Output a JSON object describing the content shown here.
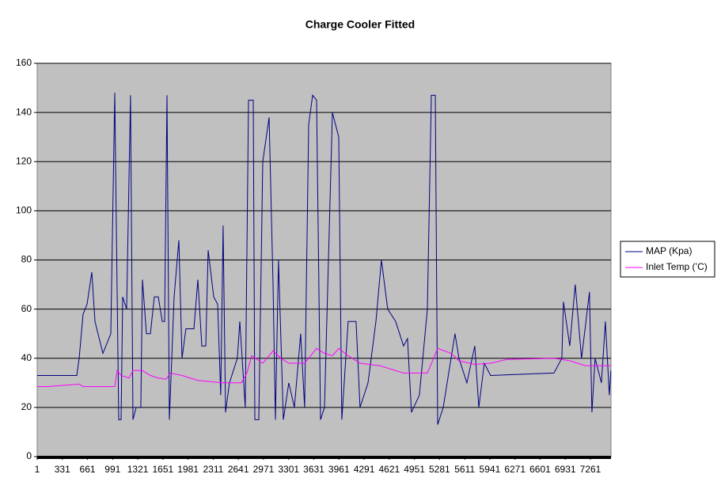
{
  "chart_data": {
    "type": "line",
    "title": "Charge Cooler Fitted",
    "xlim": [
      1,
      7531
    ],
    "xticks": [
      1,
      331,
      661,
      991,
      1321,
      1651,
      1981,
      2311,
      2641,
      2971,
      3301,
      3631,
      3961,
      4291,
      4621,
      4951,
      5281,
      5611,
      5941,
      6271,
      6601,
      6931,
      7261
    ],
    "ylim": [
      0,
      160
    ],
    "yticks": [
      0,
      20,
      40,
      60,
      80,
      100,
      120,
      140,
      160
    ],
    "grid": true,
    "legend": "right",
    "series": [
      {
        "name": "MAP (Kpa)",
        "color": "#000080",
        "x": [
          1,
          520,
          551,
          603,
          655,
          718,
          759,
          863,
          967,
          1019,
          1029,
          1071,
          1102,
          1123,
          1175,
          1226,
          1258,
          1299,
          1361,
          1382,
          1434,
          1486,
          1538,
          1590,
          1642,
          1673,
          1704,
          1735,
          1798,
          1860,
          1902,
          1953,
          2057,
          2109,
          2161,
          2213,
          2244,
          2317,
          2369,
          2410,
          2441,
          2473,
          2524,
          2628,
          2660,
          2732,
          2774,
          2836,
          2857,
          2909,
          2961,
          3044,
          3096,
          3127,
          3168,
          3231,
          3303,
          3376,
          3459,
          3511,
          3563,
          3615,
          3667,
          3719,
          3771,
          3875,
          3958,
          3999,
          4082,
          4186,
          4238,
          4342,
          4446,
          4518,
          4601,
          4705,
          4809,
          4861,
          4913,
          5017,
          5121,
          5173,
          5225,
          5256,
          5329,
          5432,
          5484,
          5536,
          5640,
          5744,
          5796,
          5868,
          5951,
          6782,
          6886,
          6907,
          6990,
          7062,
          7145,
          7249,
          7281,
          7322,
          7405,
          7457,
          7509,
          7530
        ],
        "values": [
          33,
          33,
          40,
          58,
          62,
          75,
          55,
          42,
          50,
          148,
          120,
          15,
          15,
          65,
          60,
          147,
          15,
          20,
          20,
          72,
          50,
          50,
          65,
          65,
          55,
          55,
          147,
          15,
          65,
          88,
          40,
          52,
          52,
          72,
          45,
          45,
          84,
          65,
          62,
          25,
          94,
          18,
          30,
          40,
          55,
          20,
          145,
          145,
          15,
          15,
          120,
          138,
          70,
          15,
          80,
          15,
          30,
          20,
          50,
          20,
          135,
          147,
          145,
          15,
          20,
          140,
          130,
          15,
          55,
          55,
          20,
          30,
          55,
          80,
          60,
          55,
          45,
          48,
          18,
          25,
          60,
          147,
          147,
          13,
          20,
          40,
          50,
          40,
          30,
          45,
          20,
          38,
          33,
          34,
          40,
          63,
          45,
          70,
          40,
          67,
          18,
          40,
          30,
          55,
          25,
          35
        ]
      },
      {
        "name": "Inlet Temp (’C)",
        "color": "#ff00ff",
        "x": [
          1,
          136,
          551,
          603,
          1019,
          1050,
          1102,
          1206,
          1258,
          1382,
          1486,
          1590,
          1694,
          1746,
          1902,
          2109,
          2421,
          2681,
          2753,
          2816,
          2961,
          3096,
          3200,
          3303,
          3511,
          3667,
          3771,
          3875,
          3958,
          4082,
          4238,
          4498,
          4809,
          5121,
          5256,
          5432,
          5536,
          5744,
          5951,
          6159,
          6782,
          6990,
          7197,
          7530
        ],
        "values": [
          28.5,
          28.5,
          29.5,
          28.5,
          28.5,
          35,
          33,
          32,
          35,
          35,
          33,
          32,
          31.5,
          34,
          33,
          31,
          30,
          30,
          34,
          41,
          38,
          43,
          40,
          38,
          38,
          44,
          42,
          41,
          44,
          41,
          38,
          37,
          34,
          34,
          44,
          42,
          39,
          37.5,
          38,
          39.5,
          40,
          39,
          37,
          37
        ]
      }
    ]
  }
}
